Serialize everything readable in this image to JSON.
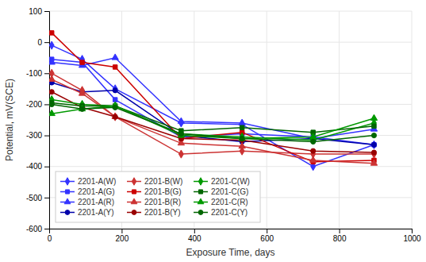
{
  "chart_data": {
    "type": "line",
    "xlabel": "Exposure Time, days",
    "ylabel": "Potential, mV(SCE)",
    "x": [
      7,
      91,
      182,
      364,
      532,
      728,
      896
    ],
    "xlim": [
      0,
      1000
    ],
    "ylim": [
      -600,
      100
    ],
    "xticks": [
      0,
      200,
      400,
      600,
      800,
      1000
    ],
    "yticks": [
      100,
      0,
      -100,
      -200,
      -300,
      -400,
      -500,
      -600
    ],
    "grid": true,
    "legend": "lower left",
    "series": [
      {
        "name": "2201-A(W)",
        "color": "#3333ff",
        "marker": "diamond",
        "values": [
          -10,
          -55,
          -150,
          -260,
          -265,
          -400,
          -330
        ]
      },
      {
        "name": "2201-A(G)",
        "color": "#3333ff",
        "marker": "square",
        "values": [
          -55,
          -65,
          -185,
          -305,
          -295,
          -305,
          -330
        ]
      },
      {
        "name": "2201-A(R)",
        "color": "#3333ff",
        "marker": "triangle",
        "values": [
          -65,
          -75,
          -50,
          -255,
          -260,
          -310,
          -280
        ]
      },
      {
        "name": "2201-A(Y)",
        "color": "#0000aa",
        "marker": "circle",
        "values": [
          -130,
          -160,
          -155,
          -300,
          -320,
          -310,
          -330
        ]
      },
      {
        "name": "2201-B(W)",
        "color": "#cc3333",
        "marker": "diamond",
        "values": [
          -100,
          -155,
          -240,
          -360,
          -350,
          -360,
          -360
        ]
      },
      {
        "name": "2201-B(G)",
        "color": "#cc0000",
        "marker": "square",
        "values": [
          30,
          -65,
          -80,
          -310,
          -290,
          -385,
          -380
        ]
      },
      {
        "name": "2201-B(R)",
        "color": "#cc3333",
        "marker": "triangle",
        "values": [
          -120,
          -165,
          -240,
          -325,
          -335,
          -380,
          -390
        ]
      },
      {
        "name": "2201-B(Y)",
        "color": "#990000",
        "marker": "circle",
        "values": [
          -160,
          -210,
          -240,
          -310,
          -315,
          -350,
          -355
        ]
      },
      {
        "name": "2201-C(W)",
        "color": "#009900",
        "marker": "diamond",
        "values": [
          -185,
          -200,
          -205,
          -295,
          -305,
          -315,
          -260
        ]
      },
      {
        "name": "2201-C(G)",
        "color": "#006600",
        "marker": "square",
        "values": [
          -195,
          -205,
          -205,
          -285,
          -275,
          -290,
          -270
        ]
      },
      {
        "name": "2201-C(R)",
        "color": "#009900",
        "marker": "triangle",
        "values": [
          -230,
          -215,
          -205,
          -300,
          -310,
          -305,
          -245
        ]
      },
      {
        "name": "2201-C(Y)",
        "color": "#006600",
        "marker": "circle",
        "values": [
          -200,
          -215,
          -210,
          -295,
          -310,
          -320,
          -300
        ]
      }
    ]
  }
}
